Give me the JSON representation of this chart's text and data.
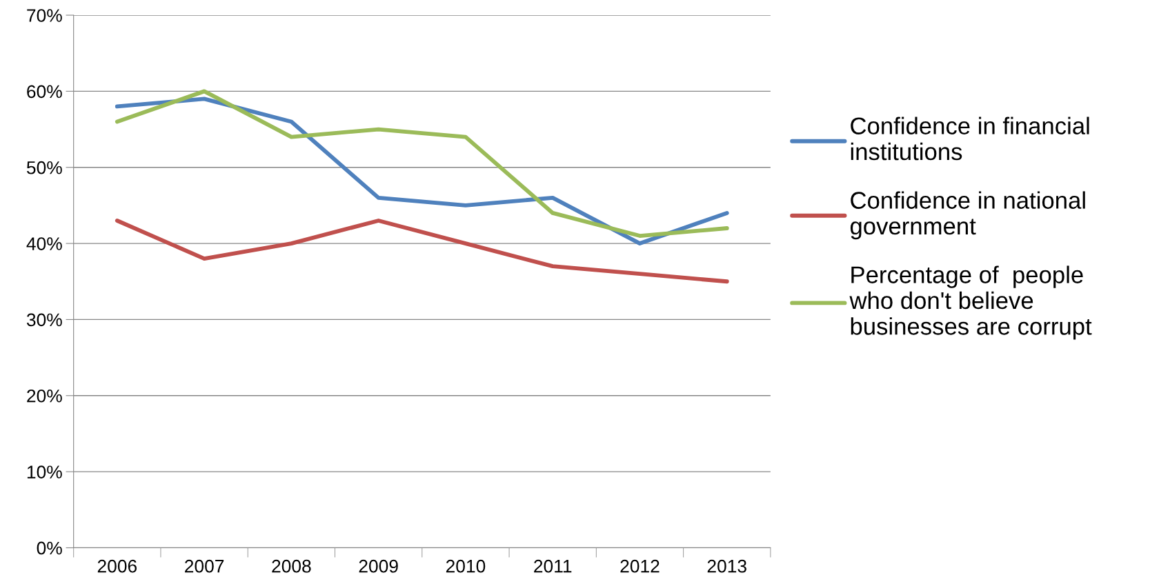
{
  "chart_data": {
    "type": "line",
    "categories": [
      "2006",
      "2007",
      "2008",
      "2009",
      "2010",
      "2011",
      "2012",
      "2013"
    ],
    "series": [
      {
        "name": "Confidence in financial\ninstitutions",
        "color": "#4f81bd",
        "values": [
          58,
          59,
          56,
          46,
          45,
          46,
          40,
          44
        ]
      },
      {
        "name": "Confidence in national\ngovernment",
        "color": "#c0504d",
        "values": [
          43,
          38,
          40,
          43,
          40,
          37,
          36,
          35
        ]
      },
      {
        "name": "Percentage of  people\nwho don't believe\nbusinesses are corrupt",
        "color": "#9bbb59",
        "values": [
          56,
          60,
          54,
          55,
          54,
          44,
          41,
          42
        ]
      }
    ],
    "ylim": [
      0,
      70
    ],
    "yticks": [
      {
        "value": 0,
        "label": "0%"
      },
      {
        "value": 10,
        "label": "10%"
      },
      {
        "value": 20,
        "label": "20%"
      },
      {
        "value": 30,
        "label": "30%"
      },
      {
        "value": 40,
        "label": "40%"
      },
      {
        "value": 50,
        "label": "50%"
      },
      {
        "value": 60,
        "label": "60%"
      },
      {
        "value": 70,
        "label": "70%"
      }
    ],
    "grid": "y",
    "legend": "right",
    "marker": "none",
    "line_style": "solid"
  }
}
